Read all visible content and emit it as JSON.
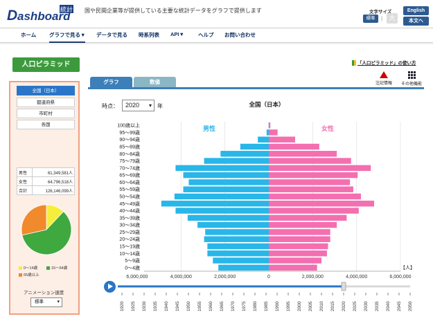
{
  "header": {
    "logo_text": "Dashboard",
    "logo_kanji": "統計",
    "tagline": "国や民間企業等が提供している主要な統計データをグラフで提供します",
    "font_size_label": "文字サイズ",
    "font_size_standard": "標準",
    "font_size_large": "大",
    "english_button": "English",
    "japanese_button": "本文へ"
  },
  "nav": {
    "items": [
      "ホーム",
      "グラフで見る▼",
      "データで見る",
      "時系列表",
      "API▼",
      "ヘルプ",
      "お問い合わせ"
    ]
  },
  "page": {
    "title_button": "人口ピラミッド",
    "howto_link": "「人口ピラミッド」の使い方",
    "tabs": [
      "グラフ",
      "数値"
    ],
    "tools": [
      "注記情報",
      "その他機能"
    ]
  },
  "sidebar": {
    "regions": [
      "全国（日本）",
      "都道府県",
      "市町村",
      "各国"
    ],
    "stats": [
      {
        "label": "男性",
        "value": "61,349,581人"
      },
      {
        "label": "女性",
        "value": "64,796,518人"
      },
      {
        "label": "合計",
        "value": "126,146,099人"
      }
    ],
    "pie": [
      {
        "label": "0〜14歳",
        "share": 12.0,
        "color": "#f5ef3c"
      },
      {
        "label": "15〜64歳",
        "share": 59.5,
        "color": "#3fa83f"
      },
      {
        "label": "65歳以上",
        "share": 28.5,
        "color": "#f08a2c"
      }
    ],
    "animation_speed_label": "アニメーション速度",
    "animation_speed_value": "標準"
  },
  "controls": {
    "time_label": "時点：",
    "year": "2020",
    "year_suffix": "年"
  },
  "timeline": {
    "years": [
      "1920",
      "1925",
      "1930",
      "1935",
      "1940",
      "1945",
      "1950",
      "1955",
      "1960",
      "1965",
      "1970",
      "1975",
      "1980",
      "1985",
      "1990",
      "1995",
      "2000",
      "2005",
      "2010",
      "2015",
      "2020",
      "2025",
      "2030",
      "2035",
      "2040",
      "2045",
      "2050"
    ],
    "current": "2020"
  },
  "chart_data": {
    "type": "bar",
    "title": "全国（日本）",
    "male_label": "男性",
    "female_label": "女性",
    "unit": "【人】",
    "categories": [
      "0〜4歳",
      "5〜9歳",
      "10〜14歳",
      "15〜19歳",
      "20〜24歳",
      "25〜29歳",
      "30〜34歳",
      "35〜39歳",
      "40〜44歳",
      "45〜49歳",
      "50〜54歳",
      "55〜59歳",
      "60〜64歳",
      "65〜69歳",
      "70〜74歳",
      "75〜79歳",
      "80〜84歳",
      "85〜89歳",
      "90〜94歳",
      "95〜99歳",
      "100歳以上"
    ],
    "series": [
      {
        "name": "男性",
        "color": "#29b6e8",
        "values": [
          2300000,
          2550000,
          2800000,
          2800000,
          2950000,
          2900000,
          3250000,
          3700000,
          4250000,
          4900000,
          4300000,
          3900000,
          3650000,
          3900000,
          4250000,
          2950000,
          2200000,
          1300000,
          500000,
          100000,
          10000
        ]
      },
      {
        "name": "女性",
        "color": "#f36fb0",
        "values": [
          2200000,
          2400000,
          2650000,
          2700000,
          2800000,
          2800000,
          3100000,
          3550000,
          4100000,
          4800000,
          4200000,
          3850000,
          3700000,
          4050000,
          4650000,
          3750000,
          3100000,
          2300000,
          1200000,
          400000,
          70000
        ]
      }
    ],
    "xticks": [
      "6,000,000",
      "4,000,000",
      "2,000,000",
      "0",
      "2,000,000",
      "4,000,000",
      "6,000,000"
    ],
    "xlim": [
      -6000000,
      6000000
    ]
  }
}
